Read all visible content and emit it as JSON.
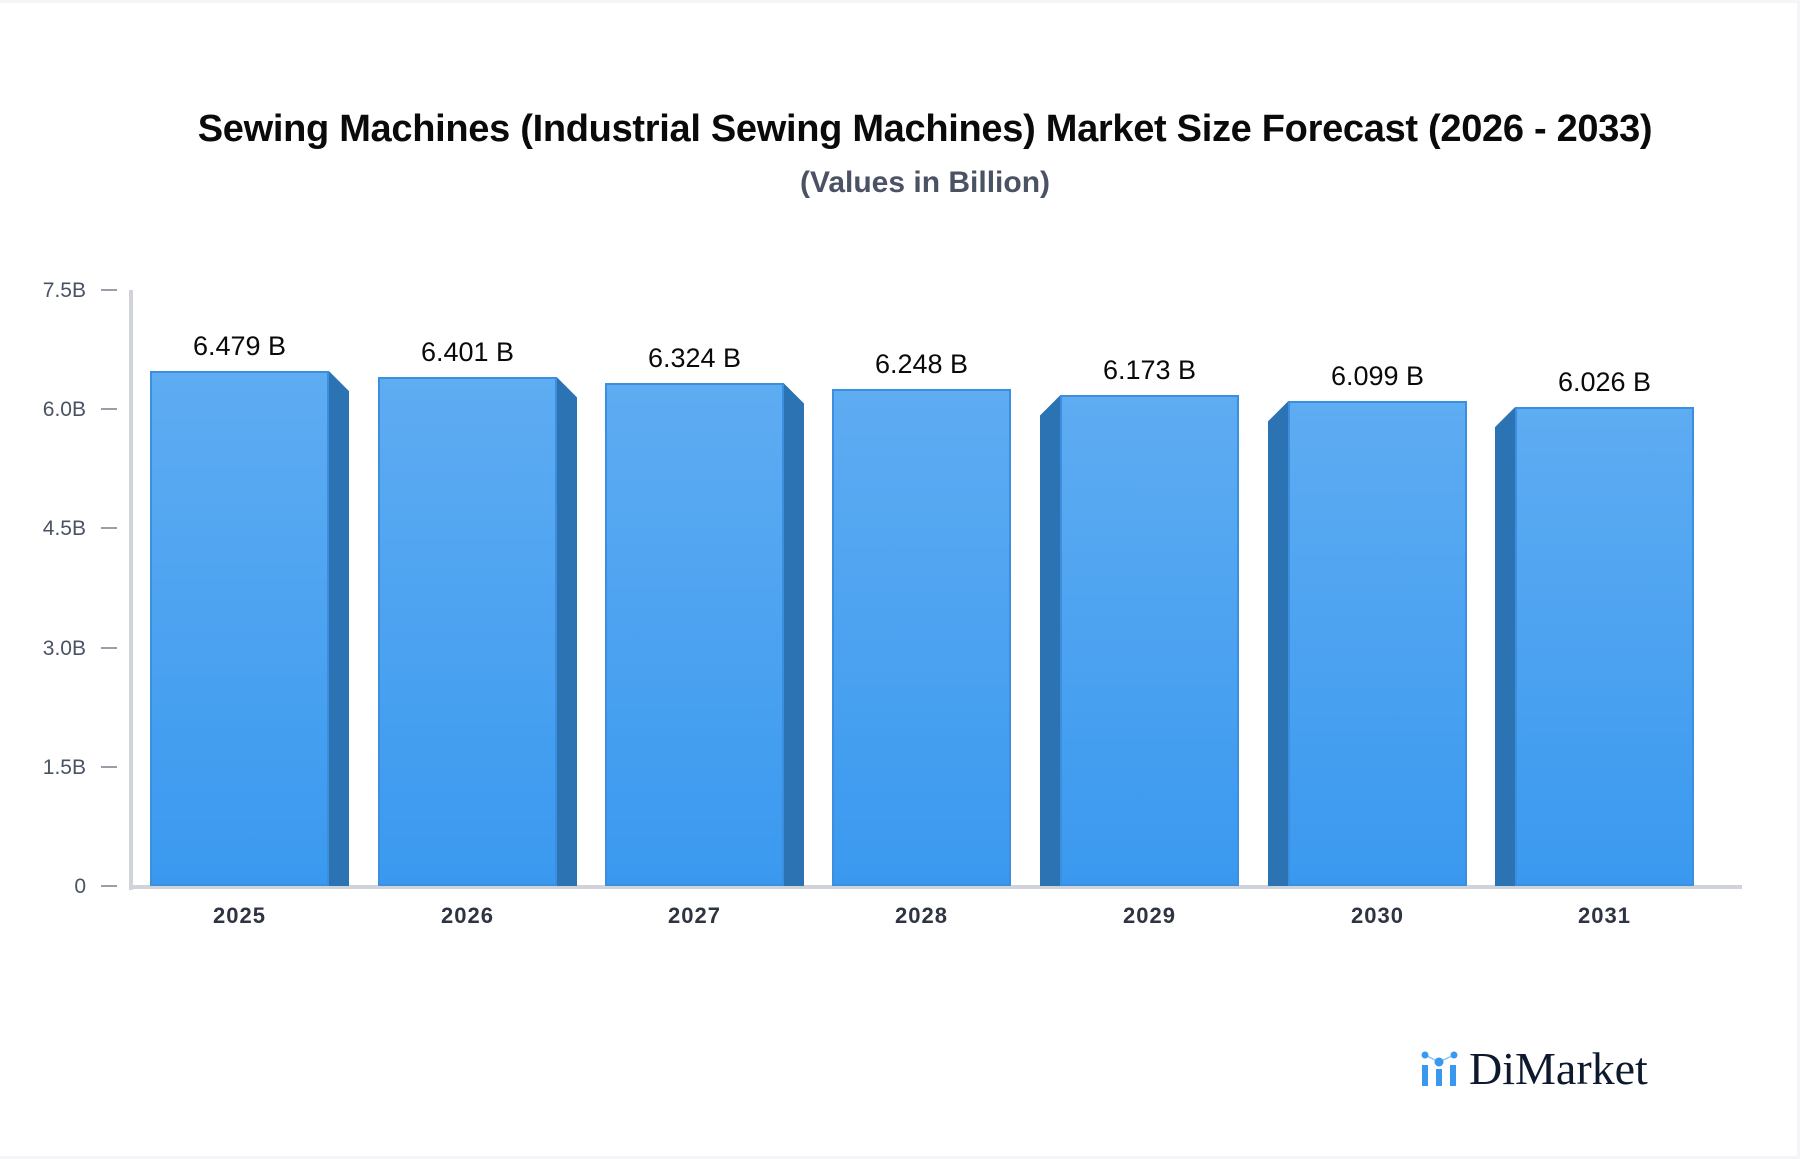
{
  "header": {
    "title": "Sewing Machines (Industrial Sewing Machines) Market Size Forecast (2026 - 2033)",
    "subtitle": "(Values in Billion)"
  },
  "y_axis": {
    "ticks": [
      "7.5B",
      "6.0B",
      "4.5B",
      "3.0B",
      "1.5B",
      "0"
    ]
  },
  "bars": [
    {
      "year": "2025",
      "label": "6.479 B"
    },
    {
      "year": "2026",
      "label": "6.401 B"
    },
    {
      "year": "2027",
      "label": "6.324 B"
    },
    {
      "year": "2028",
      "label": "6.248 B"
    },
    {
      "year": "2029",
      "label": "6.173 B"
    },
    {
      "year": "2030",
      "label": "6.099 B"
    },
    {
      "year": "2031",
      "label": "6.026 B"
    }
  ],
  "brand": {
    "name": "DiMarket",
    "icon": "bar-chart-dots-icon",
    "color": "#3a99ef"
  },
  "colors": {
    "bar_top": "#5eacf2",
    "bar_bottom": "#3a99ef",
    "bar_side": "#2c73b4",
    "axis": "#d1d3db"
  },
  "chart_data": {
    "type": "bar",
    "title": "Sewing Machines (Industrial Sewing Machines) Market Size Forecast (2026 - 2033)",
    "subtitle": "(Values in Billion)",
    "categories": [
      "2025",
      "2026",
      "2027",
      "2028",
      "2029",
      "2030",
      "2031"
    ],
    "values": [
      6.479,
      6.401,
      6.324,
      6.248,
      6.173,
      6.099,
      6.026
    ],
    "data_labels": [
      "6.479 B",
      "6.401 B",
      "6.324 B",
      "6.248 B",
      "6.173 B",
      "6.099 B",
      "6.026 B"
    ],
    "xlabel": "",
    "ylabel": "",
    "ylim": [
      0,
      7.5
    ],
    "yticks": [
      0,
      1.5,
      3.0,
      4.5,
      6.0,
      7.5
    ],
    "ytick_labels": [
      "0",
      "1.5B",
      "3.0B",
      "4.5B",
      "6.0B",
      "7.5B"
    ],
    "grid": false,
    "legend": null,
    "unit": "Billion"
  }
}
